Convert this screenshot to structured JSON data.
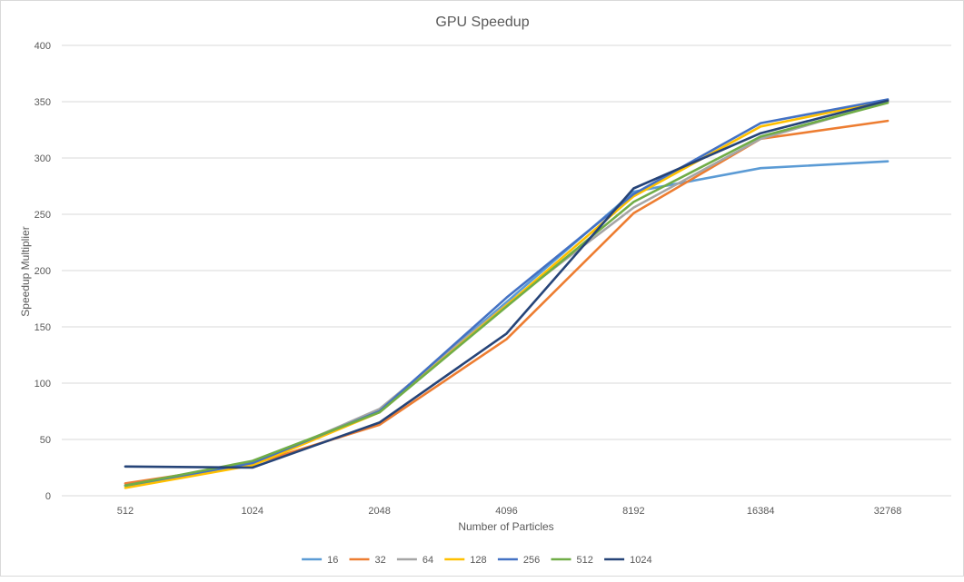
{
  "chart_data": {
    "type": "line",
    "title": "GPU Speedup",
    "xlabel": "Number  of Particles",
    "ylabel": "Speedup Multiplier",
    "categories": [
      "512",
      "1024",
      "2048",
      "4096",
      "8192",
      "16384",
      "32768"
    ],
    "ylim": [
      0,
      400
    ],
    "yticks": [
      0,
      50,
      100,
      150,
      200,
      250,
      300,
      350,
      400
    ],
    "grid": true,
    "legend_position": "bottom",
    "series": [
      {
        "name": "16",
        "color": "#5b9bd5",
        "values": [
          9,
          27,
          76,
          172,
          270,
          291,
          297
        ]
      },
      {
        "name": "32",
        "color": "#ed7d31",
        "values": [
          11,
          28,
          63,
          139,
          251,
          317,
          333
        ]
      },
      {
        "name": "64",
        "color": "#a5a5a5",
        "values": [
          9,
          28,
          77,
          170,
          256,
          317,
          350
        ]
      },
      {
        "name": "128",
        "color": "#ffc000",
        "values": [
          7,
          27,
          74,
          169,
          266,
          328,
          351
        ]
      },
      {
        "name": "256",
        "color": "#4472c4",
        "values": [
          9,
          29,
          75,
          176,
          268,
          331,
          352
        ]
      },
      {
        "name": "512",
        "color": "#70ad47",
        "values": [
          9,
          31,
          74,
          168,
          261,
          319,
          349
        ]
      },
      {
        "name": "1024",
        "color": "#264478",
        "values": [
          26,
          25,
          65,
          144,
          273,
          322,
          351
        ]
      }
    ]
  }
}
